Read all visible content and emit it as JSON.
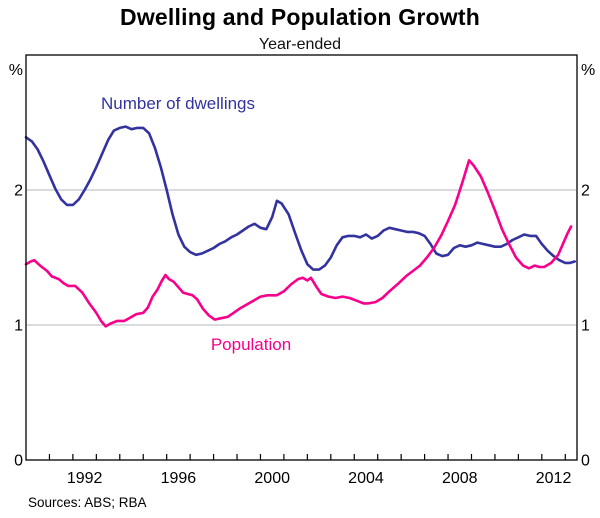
{
  "title": "Dwelling and Population Growth",
  "subtitle": "Year-ended",
  "source_note": "Sources: ABS; RBA",
  "colors": {
    "dwellings_blue": "#3333a0",
    "population_pink": "#f7008c",
    "gridline_gray": "#b4b7bd",
    "axis_black": "#000000"
  },
  "chart_data": {
    "type": "line",
    "title": "Dwelling and Population Growth",
    "subtitle": "Year-ended",
    "unit_label": "%",
    "xlim": [
      1990,
      2013.5
    ],
    "ylim": [
      0,
      3
    ],
    "grid": "horizontal-only",
    "y_gridlines": [
      1,
      2
    ],
    "y_tick_labels": [
      {
        "value": 2,
        "label": "2"
      },
      {
        "value": 1,
        "label": "1"
      },
      {
        "value": 0,
        "label": "0"
      }
    ],
    "x_tick_years_minor_every": 1,
    "x_tick_labels": [
      {
        "year": 1992,
        "label": "1992"
      },
      {
        "year": 1996,
        "label": "1996"
      },
      {
        "year": 2000,
        "label": "2000"
      },
      {
        "year": 2004,
        "label": "2004"
      },
      {
        "year": 2008,
        "label": "2008"
      },
      {
        "year": 2012,
        "label": "2012"
      }
    ],
    "legend_position": "inline-annotations",
    "series": [
      {
        "name": "Number of dwellings",
        "color": "#3333a0",
        "points": [
          [
            1990.0,
            2.39
          ],
          [
            1990.25,
            2.36
          ],
          [
            1990.5,
            2.3
          ],
          [
            1990.75,
            2.21
          ],
          [
            1991.0,
            2.11
          ],
          [
            1991.25,
            2.01
          ],
          [
            1991.5,
            1.93
          ],
          [
            1991.75,
            1.89
          ],
          [
            1992.0,
            1.89
          ],
          [
            1992.25,
            1.93
          ],
          [
            1992.5,
            2.0
          ],
          [
            1992.75,
            2.08
          ],
          [
            1993.0,
            2.17
          ],
          [
            1993.25,
            2.27
          ],
          [
            1993.5,
            2.37
          ],
          [
            1993.75,
            2.44
          ],
          [
            1994.0,
            2.46
          ],
          [
            1994.25,
            2.47
          ],
          [
            1994.5,
            2.45
          ],
          [
            1994.75,
            2.46
          ],
          [
            1995.0,
            2.46
          ],
          [
            1995.25,
            2.42
          ],
          [
            1995.5,
            2.31
          ],
          [
            1995.75,
            2.17
          ],
          [
            1996.0,
            2.0
          ],
          [
            1996.25,
            1.82
          ],
          [
            1996.5,
            1.67
          ],
          [
            1996.75,
            1.58
          ],
          [
            1997.0,
            1.54
          ],
          [
            1997.25,
            1.52
          ],
          [
            1997.5,
            1.53
          ],
          [
            1997.75,
            1.55
          ],
          [
            1998.0,
            1.57
          ],
          [
            1998.25,
            1.6
          ],
          [
            1998.5,
            1.62
          ],
          [
            1998.75,
            1.65
          ],
          [
            1999.0,
            1.67
          ],
          [
            1999.25,
            1.7
          ],
          [
            1999.5,
            1.73
          ],
          [
            1999.75,
            1.75
          ],
          [
            2000.0,
            1.72
          ],
          [
            2000.25,
            1.71
          ],
          [
            2000.5,
            1.8
          ],
          [
            2000.7,
            1.92
          ],
          [
            2000.9,
            1.9
          ],
          [
            2001.2,
            1.82
          ],
          [
            2001.5,
            1.67
          ],
          [
            2001.75,
            1.55
          ],
          [
            2002.0,
            1.45
          ],
          [
            2002.25,
            1.41
          ],
          [
            2002.5,
            1.41
          ],
          [
            2002.75,
            1.44
          ],
          [
            2003.0,
            1.5
          ],
          [
            2003.25,
            1.59
          ],
          [
            2003.5,
            1.65
          ],
          [
            2003.75,
            1.66
          ],
          [
            2004.0,
            1.66
          ],
          [
            2004.25,
            1.65
          ],
          [
            2004.5,
            1.67
          ],
          [
            2004.75,
            1.64
          ],
          [
            2005.0,
            1.66
          ],
          [
            2005.25,
            1.7
          ],
          [
            2005.5,
            1.72
          ],
          [
            2005.75,
            1.71
          ],
          [
            2006.0,
            1.7
          ],
          [
            2006.25,
            1.69
          ],
          [
            2006.5,
            1.69
          ],
          [
            2006.75,
            1.68
          ],
          [
            2007.0,
            1.66
          ],
          [
            2007.25,
            1.6
          ],
          [
            2007.5,
            1.53
          ],
          [
            2007.75,
            1.51
          ],
          [
            2008.0,
            1.52
          ],
          [
            2008.25,
            1.57
          ],
          [
            2008.5,
            1.59
          ],
          [
            2008.75,
            1.58
          ],
          [
            2009.0,
            1.59
          ],
          [
            2009.25,
            1.61
          ],
          [
            2009.5,
            1.6
          ],
          [
            2009.75,
            1.59
          ],
          [
            2010.0,
            1.58
          ],
          [
            2010.25,
            1.58
          ],
          [
            2010.5,
            1.6
          ],
          [
            2010.75,
            1.63
          ],
          [
            2011.0,
            1.65
          ],
          [
            2011.25,
            1.67
          ],
          [
            2011.5,
            1.66
          ],
          [
            2011.75,
            1.66
          ],
          [
            2012.0,
            1.6
          ],
          [
            2012.25,
            1.55
          ],
          [
            2012.5,
            1.51
          ],
          [
            2012.75,
            1.48
          ],
          [
            2013.0,
            1.46
          ],
          [
            2013.2,
            1.46
          ],
          [
            2013.4,
            1.47
          ]
        ]
      },
      {
        "name": "Population",
        "color": "#f7008c",
        "points": [
          [
            1990.0,
            1.45
          ],
          [
            1990.2,
            1.47
          ],
          [
            1990.35,
            1.48
          ],
          [
            1990.6,
            1.44
          ],
          [
            1990.9,
            1.4
          ],
          [
            1991.1,
            1.36
          ],
          [
            1991.4,
            1.34
          ],
          [
            1991.6,
            1.31
          ],
          [
            1991.8,
            1.29
          ],
          [
            1992.1,
            1.29
          ],
          [
            1992.4,
            1.24
          ],
          [
            1992.7,
            1.16
          ],
          [
            1993.0,
            1.09
          ],
          [
            1993.2,
            1.03
          ],
          [
            1993.4,
            0.99
          ],
          [
            1993.6,
            1.01
          ],
          [
            1993.9,
            1.03
          ],
          [
            1994.2,
            1.03
          ],
          [
            1994.5,
            1.06
          ],
          [
            1994.7,
            1.08
          ],
          [
            1995.0,
            1.09
          ],
          [
            1995.2,
            1.13
          ],
          [
            1995.4,
            1.21
          ],
          [
            1995.6,
            1.26
          ],
          [
            1995.8,
            1.33
          ],
          [
            1995.95,
            1.37
          ],
          [
            1996.1,
            1.34
          ],
          [
            1996.3,
            1.32
          ],
          [
            1996.5,
            1.28
          ],
          [
            1996.7,
            1.24
          ],
          [
            1996.9,
            1.23
          ],
          [
            1997.1,
            1.22
          ],
          [
            1997.3,
            1.19
          ],
          [
            1997.55,
            1.12
          ],
          [
            1997.8,
            1.07
          ],
          [
            1998.05,
            1.04
          ],
          [
            1998.3,
            1.05
          ],
          [
            1998.6,
            1.06
          ],
          [
            1998.85,
            1.09
          ],
          [
            1999.1,
            1.12
          ],
          [
            1999.4,
            1.15
          ],
          [
            1999.7,
            1.18
          ],
          [
            2000.0,
            1.21
          ],
          [
            2000.3,
            1.22
          ],
          [
            2000.7,
            1.22
          ],
          [
            2001.0,
            1.25
          ],
          [
            2001.3,
            1.3
          ],
          [
            2001.6,
            1.34
          ],
          [
            2001.8,
            1.35
          ],
          [
            2002.0,
            1.33
          ],
          [
            2002.15,
            1.35
          ],
          [
            2002.4,
            1.28
          ],
          [
            2002.6,
            1.23
          ],
          [
            2002.9,
            1.21
          ],
          [
            2003.2,
            1.2
          ],
          [
            2003.5,
            1.21
          ],
          [
            2003.8,
            1.2
          ],
          [
            2004.1,
            1.18
          ],
          [
            2004.4,
            1.16
          ],
          [
            2004.6,
            1.16
          ],
          [
            2004.9,
            1.17
          ],
          [
            2005.2,
            1.2
          ],
          [
            2005.5,
            1.25
          ],
          [
            2005.9,
            1.31
          ],
          [
            2006.2,
            1.36
          ],
          [
            2006.5,
            1.4
          ],
          [
            2006.8,
            1.44
          ],
          [
            2007.1,
            1.5
          ],
          [
            2007.4,
            1.57
          ],
          [
            2007.7,
            1.66
          ],
          [
            2008.0,
            1.77
          ],
          [
            2008.3,
            1.89
          ],
          [
            2008.6,
            2.05
          ],
          [
            2008.9,
            2.22
          ],
          [
            2009.1,
            2.18
          ],
          [
            2009.4,
            2.1
          ],
          [
            2009.7,
            1.98
          ],
          [
            2010.0,
            1.85
          ],
          [
            2010.3,
            1.71
          ],
          [
            2010.6,
            1.6
          ],
          [
            2010.9,
            1.5
          ],
          [
            2011.2,
            1.44
          ],
          [
            2011.45,
            1.42
          ],
          [
            2011.7,
            1.44
          ],
          [
            2011.9,
            1.43
          ],
          [
            2012.1,
            1.43
          ],
          [
            2012.4,
            1.46
          ],
          [
            2012.7,
            1.52
          ],
          [
            2012.9,
            1.6
          ],
          [
            2013.1,
            1.68
          ],
          [
            2013.25,
            1.73
          ]
        ]
      }
    ]
  }
}
